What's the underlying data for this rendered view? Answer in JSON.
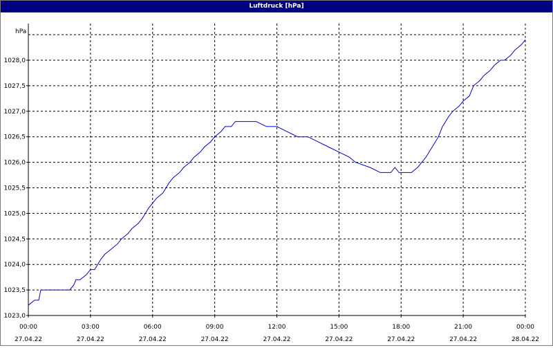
{
  "window": {
    "title": "Luftdruck [hPa]"
  },
  "chart_data": {
    "type": "line",
    "title": "Luftdruck [hPa]",
    "ylabel": "hPa",
    "xlabel": "",
    "ylim": [
      1023.0,
      1028.5
    ],
    "xlim": [
      0,
      24
    ],
    "grid": true,
    "y_ticks": [
      1023.0,
      1023.5,
      1024.0,
      1024.5,
      1025.0,
      1025.5,
      1026.0,
      1026.5,
      1027.0,
      1027.5,
      1028.0
    ],
    "y_tick_labels": [
      "1023,0",
      "1023,5",
      "1024,0",
      "1024,5",
      "1025,0",
      "1025,5",
      "1026,0",
      "1026,5",
      "1027,0",
      "1027,5",
      "1028,0"
    ],
    "x_ticks": [
      0,
      3,
      6,
      9,
      12,
      15,
      18,
      21,
      24
    ],
    "x_tick_times": [
      "00:00",
      "03:00",
      "06:00",
      "09:00",
      "12:00",
      "15:00",
      "18:00",
      "21:00",
      "00:00"
    ],
    "x_tick_dates": [
      "27.04.22",
      "27.04.22",
      "27.04.22",
      "27.04.22",
      "27.04.22",
      "27.04.22",
      "27.04.22",
      "27.04.22",
      "28.04.22"
    ],
    "series": [
      {
        "color": "#0000cc",
        "x": [
          0.0,
          0.3,
          0.5,
          0.6,
          1.0,
          2.0,
          2.2,
          2.3,
          2.5,
          2.8,
          3.0,
          3.2,
          3.5,
          3.7,
          4.0,
          4.3,
          4.5,
          4.8,
          5.0,
          5.3,
          5.5,
          5.8,
          6.0,
          6.2,
          6.5,
          6.8,
          7.0,
          7.3,
          7.5,
          7.8,
          8.0,
          8.3,
          8.5,
          8.8,
          9.0,
          9.3,
          9.5,
          9.8,
          10.0,
          10.3,
          10.5,
          11.0,
          11.5,
          11.7,
          12.0,
          12.5,
          13.0,
          13.5,
          14.0,
          14.5,
          15.0,
          15.5,
          15.8,
          16.5,
          17.0,
          17.5,
          17.7,
          17.9,
          18.5,
          18.8,
          19.0,
          19.2,
          19.5,
          19.8,
          20.0,
          20.3,
          20.5,
          20.8,
          21.0,
          21.3,
          21.5,
          21.8,
          22.0,
          22.3,
          22.5,
          22.8,
          23.0,
          23.3,
          23.5,
          23.8,
          24.0
        ],
        "y": [
          1023.2,
          1023.3,
          1023.3,
          1023.5,
          1023.5,
          1023.5,
          1023.6,
          1023.7,
          1023.7,
          1023.8,
          1023.9,
          1023.9,
          1024.1,
          1024.2,
          1024.3,
          1024.4,
          1024.5,
          1024.6,
          1024.7,
          1024.8,
          1024.9,
          1025.1,
          1025.2,
          1025.3,
          1025.4,
          1025.6,
          1025.7,
          1025.8,
          1025.9,
          1026.0,
          1026.1,
          1026.2,
          1026.3,
          1026.4,
          1026.5,
          1026.6,
          1026.7,
          1026.7,
          1026.8,
          1026.8,
          1026.8,
          1026.8,
          1026.7,
          1026.7,
          1026.7,
          1026.6,
          1026.5,
          1026.5,
          1026.4,
          1026.3,
          1026.2,
          1026.1,
          1026.0,
          1025.9,
          1025.8,
          1025.8,
          1025.9,
          1025.8,
          1025.8,
          1025.9,
          1026.0,
          1026.1,
          1026.3,
          1026.5,
          1026.7,
          1026.9,
          1027.0,
          1027.1,
          1027.2,
          1027.3,
          1027.5,
          1027.6,
          1027.7,
          1027.8,
          1027.9,
          1028.0,
          1028.0,
          1028.1,
          1028.2,
          1028.3,
          1028.4
        ]
      }
    ]
  }
}
